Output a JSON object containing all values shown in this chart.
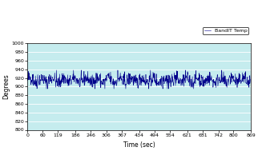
{
  "title": "",
  "xlabel": "Time (sec)",
  "ylabel": "Degrees",
  "xlim": [
    0,
    869
  ],
  "ylim": [
    800,
    1000
  ],
  "xticks": [
    0,
    60,
    119,
    186,
    246,
    306,
    367,
    434,
    494,
    554,
    621,
    681,
    742,
    800,
    869
  ],
  "yticks": [
    800,
    820,
    840,
    860,
    880,
    900,
    920,
    940,
    960,
    980,
    1000
  ],
  "legend_label": "BandIT Temp",
  "line_color": "#00008B",
  "bg_color": "#c5ecee",
  "mean_temp": 915,
  "noise_amp": 8,
  "n_points": 870,
  "seed": 42
}
